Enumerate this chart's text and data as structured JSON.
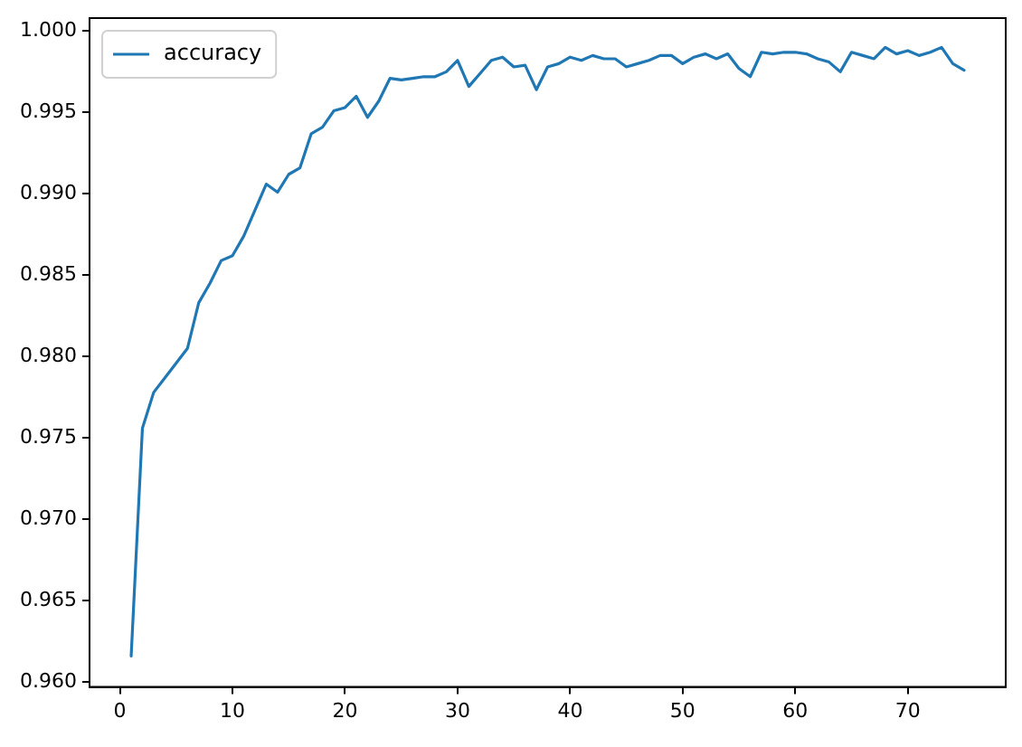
{
  "chart_data": {
    "type": "line",
    "x": [
      1,
      2,
      3,
      4,
      5,
      6,
      7,
      8,
      9,
      10,
      11,
      12,
      13,
      14,
      15,
      16,
      17,
      18,
      19,
      20,
      21,
      22,
      23,
      24,
      25,
      26,
      27,
      28,
      29,
      30,
      31,
      32,
      33,
      34,
      35,
      36,
      37,
      38,
      39,
      40,
      41,
      42,
      43,
      44,
      45,
      46,
      47,
      48,
      49,
      50,
      51,
      52,
      53,
      54,
      55,
      56,
      57,
      58,
      59,
      60,
      61,
      62,
      63,
      64,
      65,
      66,
      67,
      68,
      69,
      70,
      71,
      72,
      73,
      74,
      75
    ],
    "series": [
      {
        "name": "accuracy",
        "color": "#1f77b4",
        "values": [
          0.9616,
          0.9756,
          0.9778,
          0.9787,
          0.9796,
          0.9805,
          0.9833,
          0.9845,
          0.9859,
          0.9862,
          0.9874,
          0.989,
          0.9906,
          0.9901,
          0.9912,
          0.9916,
          0.9937,
          0.9941,
          0.9951,
          0.9953,
          0.996,
          0.9947,
          0.9957,
          0.9971,
          0.997,
          0.9971,
          0.9972,
          0.9972,
          0.9975,
          0.9982,
          0.9966,
          0.9974,
          0.9982,
          0.9984,
          0.9978,
          0.9979,
          0.9964,
          0.9978,
          0.998,
          0.9984,
          0.9982,
          0.9985,
          0.9983,
          0.9983,
          0.9978,
          0.998,
          0.9982,
          0.9985,
          0.9985,
          0.998,
          0.9984,
          0.9986,
          0.9983,
          0.9986,
          0.9977,
          0.9972,
          0.9987,
          0.9986,
          0.9987,
          0.9987,
          0.9986,
          0.9983,
          0.9981,
          0.9975,
          0.9987,
          0.9985,
          0.9983,
          0.999,
          0.9986,
          0.9988,
          0.9985,
          0.9987,
          0.999,
          0.998,
          0.9976
        ]
      }
    ],
    "xlim": [
      -2.7,
      78.7
    ],
    "ylim": [
      0.9597,
      1.0008
    ],
    "xticks": [
      0,
      10,
      20,
      30,
      40,
      50,
      60,
      70
    ],
    "yticks": [
      {
        "value": 0.96,
        "label": "0.960"
      },
      {
        "value": 0.965,
        "label": "0.965"
      },
      {
        "value": 0.97,
        "label": "0.970"
      },
      {
        "value": 0.975,
        "label": "0.975"
      },
      {
        "value": 0.98,
        "label": "0.980"
      },
      {
        "value": 0.985,
        "label": "0.985"
      },
      {
        "value": 0.99,
        "label": "0.990"
      },
      {
        "value": 0.995,
        "label": "0.995"
      },
      {
        "value": 1.0,
        "label": "1.000"
      }
    ],
    "grid": false,
    "legend": "top left",
    "line_style": "solid",
    "marker": "none"
  }
}
